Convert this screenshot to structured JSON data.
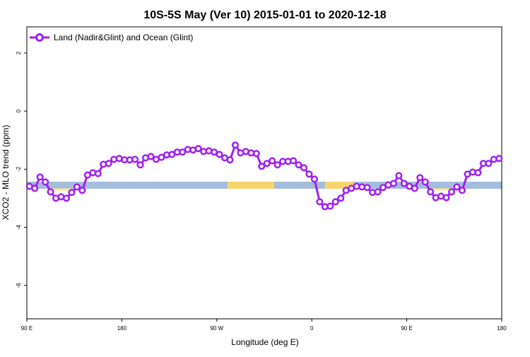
{
  "chart_data": {
    "type": "line",
    "title": "10S-5S May (Ver 10)   2015-01-01 to 2020-12-18",
    "x_label": "Longitude (deg E)",
    "y_label": "XCO2 - MLO trend (ppm)",
    "x": [
      92.5,
      97.5,
      102.5,
      107.5,
      112.5,
      117.5,
      122.5,
      127.5,
      132.5,
      137.5,
      142.5,
      147.5,
      152.5,
      157.5,
      162.5,
      167.5,
      172.5,
      177.5,
      182.5,
      187.5,
      192.5,
      197.5,
      202.5,
      207.5,
      212.5,
      217.5,
      222.5,
      227.5,
      232.5,
      237.5,
      242.5,
      247.5,
      252.5,
      257.5,
      262.5,
      267.5,
      272.5,
      277.5,
      282.5,
      287.5,
      292.5,
      297.5,
      302.5,
      307.5,
      312.5,
      317.5,
      322.5,
      327.5,
      332.5,
      337.5,
      342.5,
      347.5,
      352.5,
      357.5,
      362.5,
      367.5,
      372.5,
      377.5,
      382.5,
      387.5,
      392.5,
      397.5,
      402.5,
      407.5,
      412.5,
      417.5,
      422.5,
      427.5,
      432.5,
      437.5,
      442.5,
      447.5,
      452.5,
      457.5,
      462.5,
      467.5,
      472.5,
      477.5,
      482.5,
      487.5,
      492.5,
      497.5,
      502.5,
      507.5,
      512.5,
      517.5,
      522.5,
      527.5,
      532.5,
      537.5
    ],
    "series": [
      {
        "name": "Land (Nadir&Glint) and Ocean (Glint)",
        "color": "#a020f0",
        "values": [
          -2.59,
          -2.66,
          -2.27,
          -2.44,
          -2.78,
          -3.0,
          -2.95,
          -3.0,
          -2.8,
          -2.61,
          -2.73,
          -2.2,
          -2.12,
          -2.15,
          -1.83,
          -1.8,
          -1.66,
          -1.63,
          -1.68,
          -1.68,
          -1.66,
          -1.85,
          -1.61,
          -1.56,
          -1.66,
          -1.59,
          -1.51,
          -1.49,
          -1.41,
          -1.41,
          -1.32,
          -1.34,
          -1.29,
          -1.39,
          -1.37,
          -1.41,
          -1.49,
          -1.61,
          -1.68,
          -1.17,
          -1.44,
          -1.39,
          -1.44,
          -1.46,
          -1.9,
          -1.8,
          -1.71,
          -1.85,
          -1.73,
          -1.73,
          -1.71,
          -1.85,
          -1.95,
          -2.17,
          -2.34,
          -3.12,
          -3.29,
          -3.27,
          -3.12,
          -3.0,
          -2.73,
          -2.66,
          -2.59,
          -2.61,
          -2.63,
          -2.8,
          -2.78,
          -2.63,
          -2.54,
          -2.49,
          -2.22,
          -2.49,
          -2.59,
          -2.66,
          -2.29,
          -2.44,
          -2.78,
          -2.98,
          -2.93,
          -2.98,
          -2.78,
          -2.61,
          -2.73,
          -2.17,
          -2.1,
          -2.12,
          -1.8,
          -1.8,
          -1.66,
          -1.63
        ]
      }
    ],
    "xlim": [
      90,
      540
    ],
    "xticks": [
      {
        "value": 90,
        "label": "90 E"
      },
      180,
      {
        "value": 270,
        "label": "90 W"
      },
      {
        "value": 360,
        "label": "0"
      },
      {
        "value": 450,
        "label": "90 E"
      },
      {
        "value": 540,
        "label": "180"
      }
    ],
    "ylim": [
      -7.15,
      2.9
    ],
    "yticks": [
      2,
      0,
      -2,
      -4,
      -6
    ],
    "legend": "top-left"
  }
}
